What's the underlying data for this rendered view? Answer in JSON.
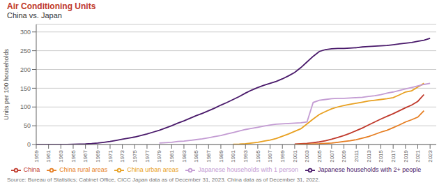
{
  "chart_data": {
    "type": "line",
    "title": "Air Conditioning Units",
    "subtitle": "China vs. Japan",
    "ylabel": "Units per 100 households",
    "annotations": [
      "Source: Bureau of Statistics; Cabinet Office, CICC Japan data as of December 31, 2023. China data as of December 31, 2022."
    ],
    "x": [
      1959,
      1960,
      1961,
      1962,
      1963,
      1964,
      1965,
      1966,
      1967,
      1968,
      1969,
      1970,
      1971,
      1972,
      1973,
      1974,
      1975,
      1976,
      1977,
      1978,
      1979,
      1980,
      1981,
      1982,
      1983,
      1984,
      1985,
      1986,
      1987,
      1988,
      1989,
      1990,
      1991,
      1992,
      1993,
      1994,
      1995,
      1996,
      1997,
      1998,
      1999,
      2000,
      2001,
      2002,
      2003,
      2004,
      2005,
      2006,
      2007,
      2008,
      2009,
      2010,
      2011,
      2012,
      2013,
      2014,
      2015,
      2016,
      2017,
      2018,
      2019,
      2020,
      2021,
      2022,
      2023
    ],
    "xlim": [
      1959,
      2024
    ],
    "xticks": [
      1959,
      1961,
      1963,
      1965,
      1967,
      1969,
      1971,
      1973,
      1975,
      1977,
      1979,
      1981,
      1983,
      1985,
      1987,
      1989,
      1991,
      1993,
      1995,
      1997,
      1999,
      2001,
      2003,
      2005,
      2007,
      2009,
      2011,
      2013,
      2015,
      2017,
      2019,
      2021,
      2023
    ],
    "ylim": [
      0,
      320
    ],
    "yticks": [
      0,
      50,
      100,
      150,
      200,
      250,
      300
    ],
    "grid": true,
    "series": [
      {
        "name": "China",
        "color": "#c0392b",
        "values": [
          null,
          null,
          null,
          null,
          null,
          null,
          null,
          null,
          null,
          null,
          null,
          null,
          null,
          null,
          null,
          null,
          null,
          null,
          null,
          null,
          null,
          null,
          null,
          null,
          null,
          null,
          null,
          null,
          null,
          null,
          null,
          null,
          null,
          null,
          null,
          null,
          null,
          null,
          null,
          null,
          null,
          null,
          1,
          2,
          3,
          5,
          7,
          10,
          14,
          19,
          24,
          30,
          37,
          44,
          52,
          60,
          68,
          75,
          82,
          90,
          98,
          105,
          115,
          133,
          null
        ]
      },
      {
        "name": "China rural areas",
        "color": "#e67e22",
        "values": [
          null,
          null,
          null,
          null,
          null,
          null,
          null,
          null,
          null,
          null,
          null,
          null,
          null,
          null,
          null,
          null,
          null,
          null,
          null,
          null,
          null,
          null,
          null,
          null,
          null,
          null,
          null,
          null,
          null,
          null,
          null,
          null,
          null,
          null,
          null,
          null,
          null,
          null,
          null,
          null,
          null,
          null,
          0.3,
          0.5,
          0.8,
          1.5,
          2,
          3,
          4,
          6,
          8,
          10,
          13,
          17,
          21,
          27,
          33,
          38,
          45,
          52,
          60,
          66,
          73,
          90,
          null
        ]
      },
      {
        "name": "China urban areas",
        "color": "#e8a020",
        "values": [
          null,
          null,
          null,
          null,
          null,
          null,
          null,
          null,
          null,
          null,
          null,
          null,
          null,
          null,
          null,
          null,
          null,
          null,
          null,
          null,
          null,
          null,
          null,
          null,
          null,
          null,
          null,
          null,
          null,
          null,
          null,
          null,
          0.5,
          1,
          2,
          4,
          6,
          9,
          12,
          16,
          22,
          28,
          35,
          42,
          55,
          68,
          80,
          88,
          95,
          100,
          104,
          107,
          110,
          113,
          116,
          118,
          120,
          122,
          125,
          132,
          140,
          143,
          153,
          163,
          null
        ]
      },
      {
        "name": "Japanese households with 2+ people",
        "color": "#4a1a6b",
        "values": [
          0,
          0,
          0,
          0,
          0,
          0.2,
          0.5,
          1,
          1.5,
          2.5,
          4,
          6,
          8,
          11,
          14,
          17,
          20,
          24,
          28,
          33,
          38,
          44,
          50,
          57,
          63,
          70,
          77,
          83,
          90,
          97,
          105,
          112,
          120,
          128,
          137,
          145,
          152,
          158,
          163,
          168,
          175,
          183,
          192,
          205,
          220,
          235,
          248,
          253,
          255,
          256,
          256,
          257,
          258,
          260,
          261,
          262,
          263,
          264,
          266,
          268,
          270,
          272,
          275,
          278,
          283
        ]
      },
      {
        "name": "Japanese households with 1 person",
        "color": "#c39bd3",
        "values": [
          null,
          null,
          null,
          null,
          null,
          null,
          null,
          null,
          null,
          null,
          null,
          null,
          null,
          null,
          null,
          null,
          null,
          null,
          null,
          null,
          4,
          5,
          6,
          8,
          9,
          11,
          13,
          15,
          18,
          21,
          24,
          28,
          32,
          36,
          40,
          43,
          46,
          49,
          52,
          54,
          55,
          56,
          57,
          58,
          60,
          112,
          118,
          120,
          122,
          123,
          123,
          124,
          125,
          126,
          128,
          130,
          133,
          137,
          140,
          144,
          148,
          152,
          156,
          160,
          163
        ]
      }
    ]
  }
}
